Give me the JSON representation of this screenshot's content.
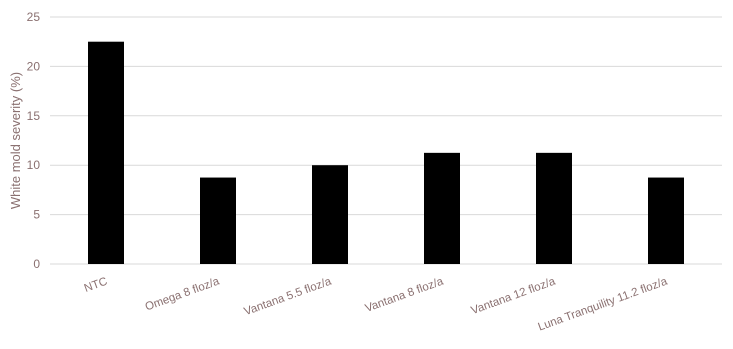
{
  "chart_data": {
    "type": "bar",
    "title": "",
    "xlabel": "",
    "ylabel": "White mold severity (%)",
    "ylim": [
      0,
      25
    ],
    "yticks": [
      0,
      5,
      10,
      15,
      20,
      25
    ],
    "grid": true,
    "legend": "none",
    "categories": [
      "NTC",
      "Omega 8 floz/a",
      "Vantana 5.5 floz/a",
      "Vantana 8 floz/a",
      "Vantana 12 floz/a",
      "Luna Tranquility 11.2 floz/a"
    ],
    "values": [
      22.5,
      8.75,
      10.0,
      11.25,
      11.25,
      8.75
    ],
    "bar_color": "#000000",
    "grid_color": "#d9d9d9",
    "text_color": "#8a7070"
  }
}
